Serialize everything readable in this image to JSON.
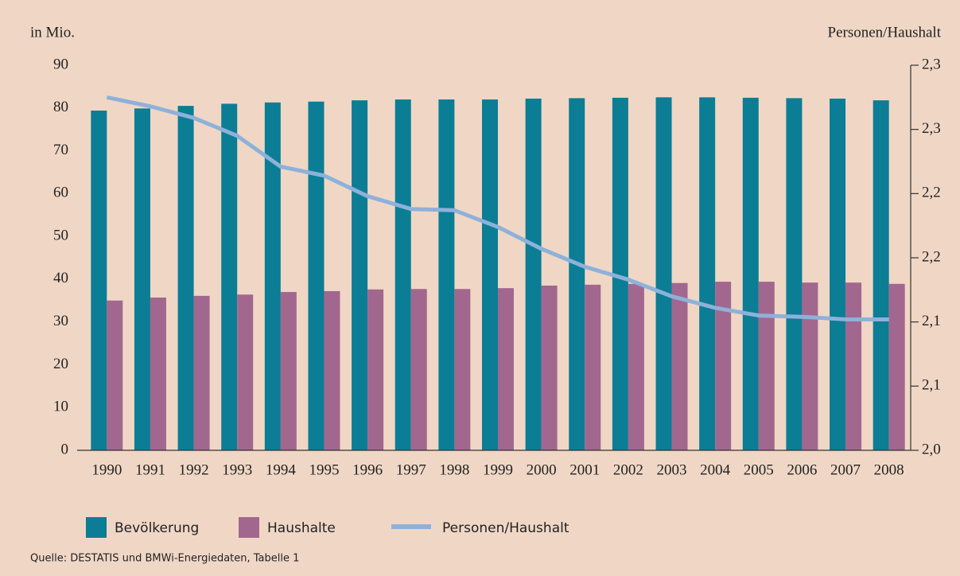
{
  "chart_data": {
    "type": "bar",
    "y_label": "in Mio.",
    "y2_label": "Personen/Haushalt",
    "source": "Quelle: DESTATIS und BMWi-Energiedaten, Tabelle 1",
    "categories": [
      "1990",
      "1991",
      "1992",
      "1993",
      "1994",
      "1995",
      "1996",
      "1997",
      "1998",
      "1999",
      "2000",
      "2001",
      "2002",
      "2003",
      "2004",
      "2005",
      "2006",
      "2007",
      "2008"
    ],
    "series": [
      {
        "name": "Bevölkerung",
        "type": "bar",
        "color": "#0b7d95",
        "values": [
          79.4,
          79.9,
          80.5,
          81.0,
          81.3,
          81.5,
          81.8,
          82.0,
          82.0,
          82.0,
          82.2,
          82.3,
          82.4,
          82.5,
          82.5,
          82.4,
          82.3,
          82.2,
          81.8
        ]
      },
      {
        "name": "Haushalte",
        "type": "bar",
        "color": "#a2678f",
        "values": [
          35.0,
          35.7,
          36.1,
          36.4,
          37.0,
          37.2,
          37.6,
          37.7,
          37.7,
          37.9,
          38.5,
          38.7,
          38.9,
          39.1,
          39.4,
          39.4,
          39.2,
          39.2,
          38.9
        ]
      },
      {
        "name": "Personen/Haushalt",
        "type": "line",
        "axis": "y2",
        "color": "#8eb1d9",
        "values": [
          2.275,
          2.268,
          2.259,
          2.245,
          2.221,
          2.214,
          2.198,
          2.188,
          2.187,
          2.174,
          2.157,
          2.143,
          2.133,
          2.12,
          2.111,
          2.105,
          2.104,
          2.102,
          2.102
        ]
      }
    ],
    "ylim": [
      0,
      90
    ],
    "yticks": [
      0,
      10,
      20,
      30,
      40,
      50,
      60,
      70,
      80,
      90
    ],
    "y2lim": [
      2.0,
      2.3
    ],
    "y2ticks": [
      {
        "value": 2.0,
        "label": "2,0"
      },
      {
        "value": 2.05,
        "label": "2,1"
      },
      {
        "value": 2.1,
        "label": "2,1"
      },
      {
        "value": 2.15,
        "label": "2,2"
      },
      {
        "value": 2.2,
        "label": "2,2"
      },
      {
        "value": 2.25,
        "label": "2,3"
      },
      {
        "value": 2.3,
        "label": "2,3"
      }
    ]
  }
}
